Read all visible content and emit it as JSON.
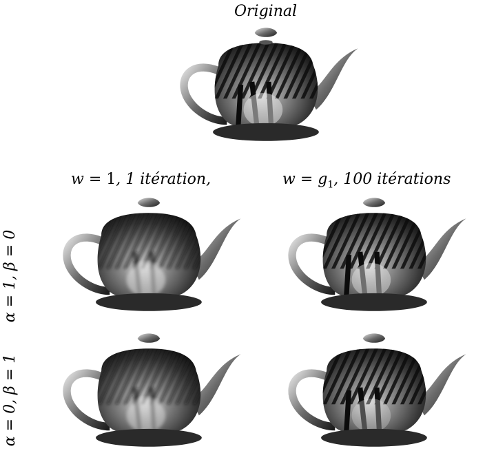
{
  "title": "Original",
  "columns": [
    {
      "var": "w",
      "val": "1",
      "text": ", 1 itération,"
    },
    {
      "var": "w",
      "val": "g",
      "sub": "1",
      "text": ", 100 itérations"
    }
  ],
  "rows": [
    {
      "a": "α = 1, β = 0"
    },
    {
      "a": "α = 0, β = 1"
    }
  ],
  "panels": [
    {
      "name": "original",
      "blur": 0
    },
    {
      "name": "row1-col1",
      "blur": 3
    },
    {
      "name": "row1-col2",
      "blur": 0
    },
    {
      "name": "row2-col1",
      "blur": 3
    },
    {
      "name": "row2-col2",
      "blur": 0
    }
  ]
}
